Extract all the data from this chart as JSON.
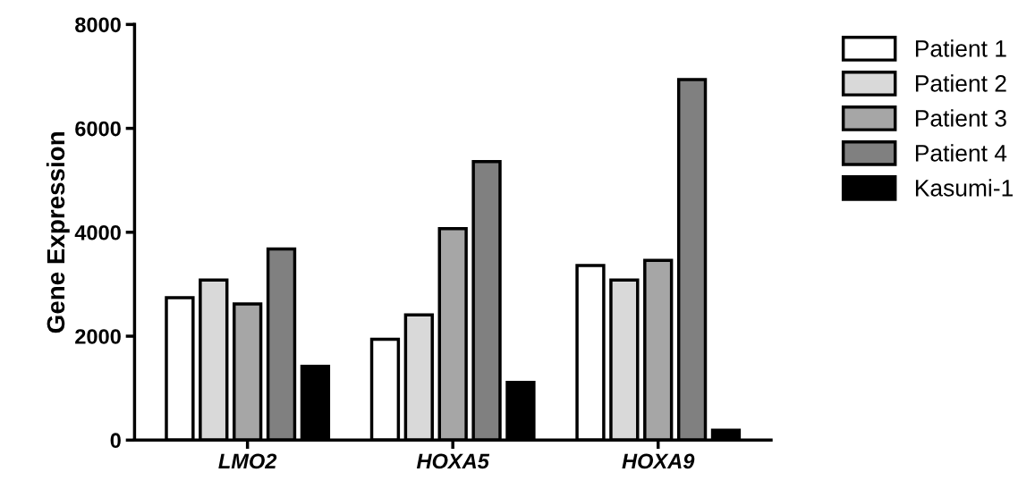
{
  "chart_data": {
    "type": "bar",
    "ylabel": "Gene Expression",
    "categories": [
      "LMO2",
      "HOXA5",
      "HOXA9"
    ],
    "series": [
      {
        "name": "Patient 1",
        "color": "#ffffff",
        "values": [
          2740,
          1940,
          3360
        ]
      },
      {
        "name": "Patient 2",
        "color": "#d9d9d9",
        "values": [
          3080,
          2410,
          3080
        ]
      },
      {
        "name": "Patient 3",
        "color": "#a6a6a6",
        "values": [
          2620,
          4070,
          3460
        ]
      },
      {
        "name": "Patient 4",
        "color": "#808080",
        "values": [
          3680,
          5360,
          6940
        ]
      },
      {
        "name": "Kasumi-1",
        "color": "#000000",
        "values": [
          1420,
          1110,
          190
        ]
      }
    ],
    "ylim": [
      0,
      8000
    ],
    "yticks": [
      0,
      2000,
      4000,
      6000,
      8000
    ],
    "grid": false,
    "legend": "right"
  }
}
